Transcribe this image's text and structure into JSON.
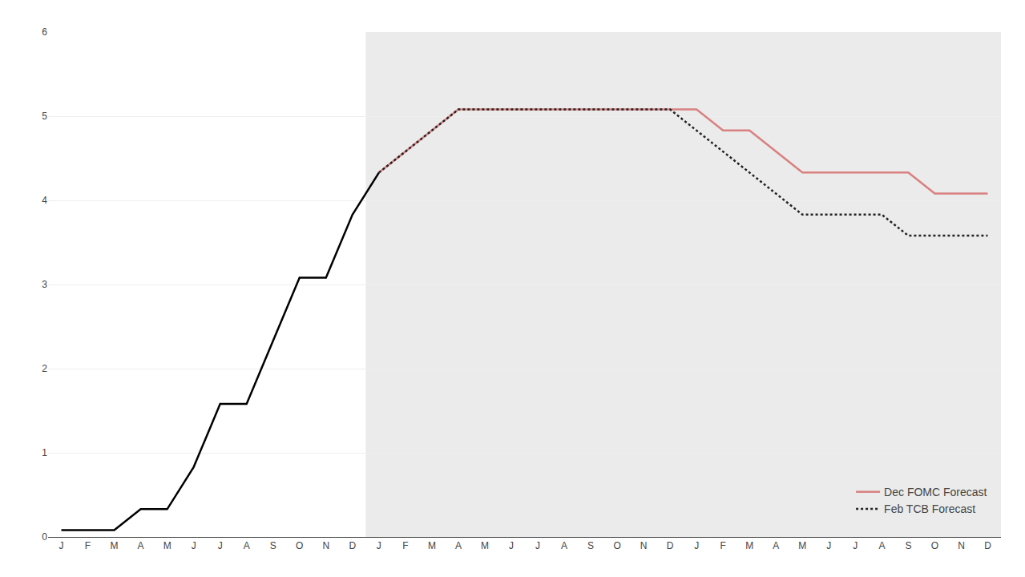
{
  "chart_data": {
    "type": "line",
    "categories": [
      "J",
      "F",
      "M",
      "A",
      "M",
      "J",
      "J",
      "A",
      "S",
      "O",
      "N",
      "D",
      "J",
      "F",
      "M",
      "A",
      "M",
      "J",
      "J",
      "A",
      "S",
      "O",
      "N",
      "D",
      "J",
      "F",
      "M",
      "A",
      "M",
      "J",
      "J",
      "A",
      "S",
      "O",
      "N",
      "D"
    ],
    "series": [
      {
        "color": "#000000",
        "line_style": "solid",
        "values": [
          0.08,
          0.08,
          0.08,
          0.33,
          0.33,
          0.83,
          1.58,
          1.58,
          2.33,
          3.08,
          3.08,
          3.83,
          4.33,
          null,
          null,
          null,
          null,
          null,
          null,
          null,
          null,
          null,
          null,
          null,
          null,
          null,
          null,
          null,
          null,
          null,
          null,
          null,
          null,
          null,
          null,
          null
        ]
      },
      {
        "name": "Dec FOMC Forecast",
        "color": "#d98080",
        "line_style": "solid",
        "values": [
          null,
          null,
          null,
          null,
          null,
          null,
          null,
          null,
          null,
          null,
          null,
          null,
          4.33,
          4.58,
          4.83,
          5.08,
          5.08,
          5.08,
          5.08,
          5.08,
          5.08,
          5.08,
          5.08,
          5.08,
          5.08,
          4.83,
          4.83,
          4.58,
          4.33,
          4.33,
          4.33,
          4.33,
          4.33,
          4.08,
          4.08,
          4.08
        ]
      },
      {
        "name": "Feb TCB Forecast",
        "color": "#222222",
        "line_style": "dotted",
        "values": [
          null,
          null,
          null,
          null,
          null,
          null,
          null,
          null,
          null,
          null,
          null,
          null,
          4.33,
          4.58,
          4.83,
          5.08,
          5.08,
          5.08,
          5.08,
          5.08,
          5.08,
          5.08,
          5.08,
          5.08,
          4.83,
          4.58,
          4.33,
          4.08,
          3.83,
          3.83,
          3.83,
          3.83,
          3.58,
          3.58,
          3.58,
          3.58
        ]
      }
    ],
    "ylim": [
      0,
      6
    ],
    "yticks": [
      0,
      1,
      2,
      3,
      4,
      5,
      6
    ],
    "grid": true,
    "legend": "lower right"
  }
}
